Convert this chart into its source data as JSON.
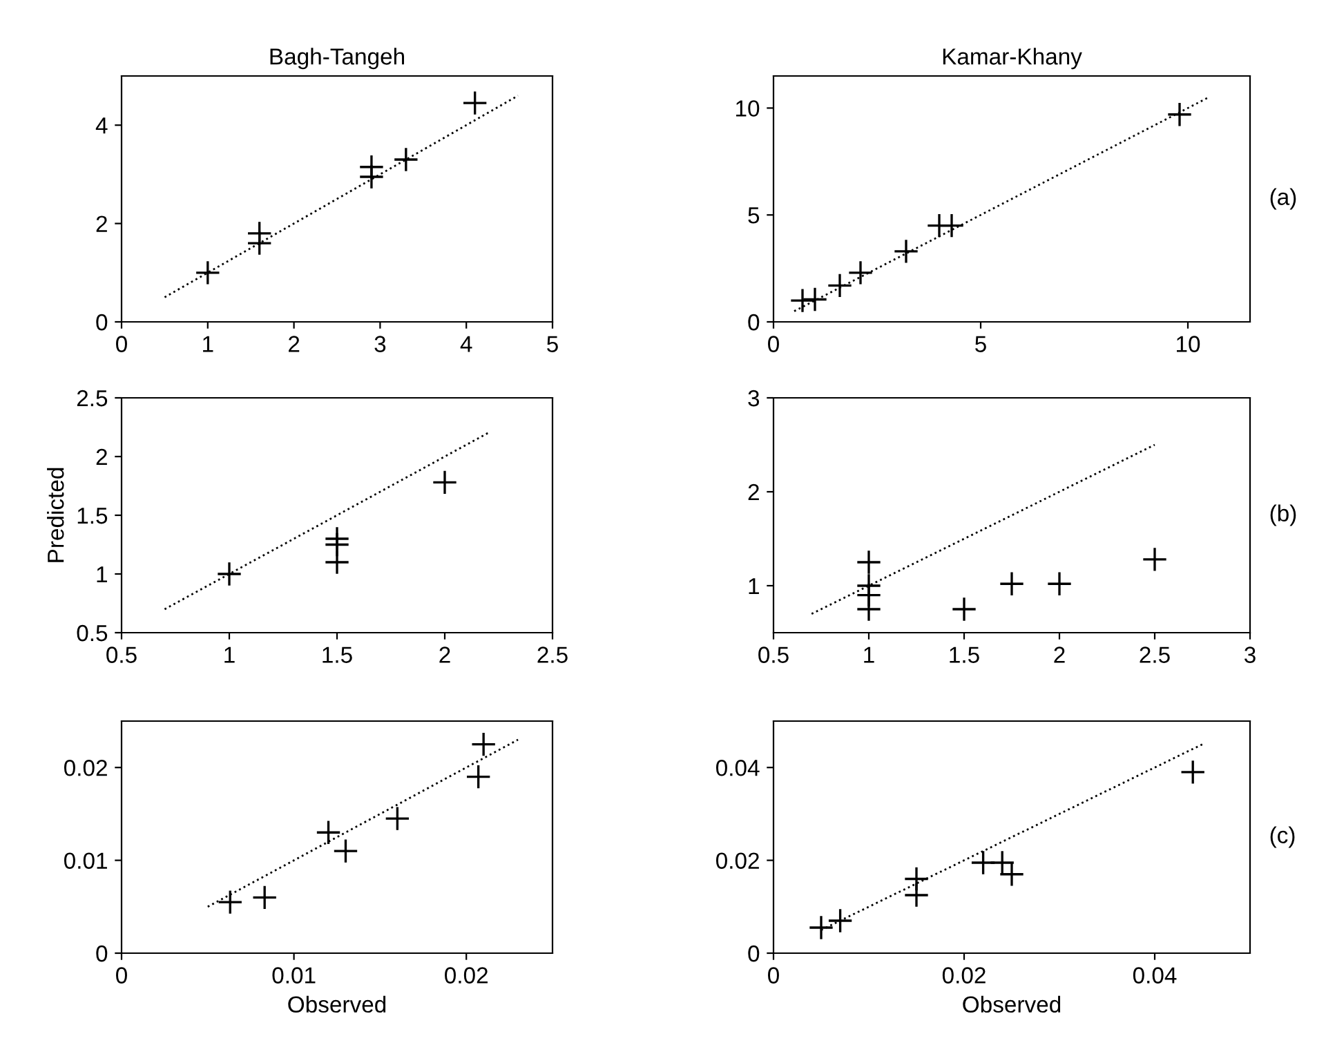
{
  "chart_data": [
    {
      "type": "scatter",
      "title": "Bagh-Tangeh",
      "xlim": [
        0,
        5
      ],
      "ylim": [
        0,
        5
      ],
      "xticks": [
        0,
        1,
        2,
        3,
        4,
        5
      ],
      "yticks": [
        0,
        2,
        4
      ],
      "grid": false,
      "legend": false,
      "marker": "cross",
      "series": [
        {
          "color": "#000000",
          "x": [
            1,
            1.6,
            1.6,
            2.9,
            2.9,
            3.3,
            4.1
          ],
          "values": [
            1,
            1.6,
            1.8,
            2.95,
            3.15,
            3.3,
            4.45
          ]
        },
        {
          "type": "line",
          "color": "#000000",
          "line_style": "dotted",
          "marker": "none",
          "x": [
            0.5,
            4.6
          ],
          "values": [
            0.5,
            4.6
          ]
        }
      ]
    },
    {
      "type": "scatter",
      "title": "Kamar-Khany",
      "annotations": [
        "(a)"
      ],
      "xlim": [
        0,
        11.5
      ],
      "ylim": [
        0,
        11.5
      ],
      "xticks": [
        0,
        5,
        10
      ],
      "yticks": [
        0,
        5,
        10
      ],
      "grid": false,
      "legend": false,
      "marker": "cross",
      "series": [
        {
          "color": "#000000",
          "x": [
            0.7,
            1,
            1.6,
            2.1,
            3.2,
            4,
            4.3,
            9.8
          ],
          "values": [
            1,
            1.05,
            1.7,
            2.3,
            3.3,
            4.5,
            4.5,
            9.7
          ]
        },
        {
          "type": "line",
          "color": "#000000",
          "line_style": "dotted",
          "marker": "none",
          "x": [
            0.5,
            10.5
          ],
          "values": [
            0.5,
            10.5
          ]
        }
      ]
    },
    {
      "type": "scatter",
      "ylabel": "Predicted",
      "xlim": [
        0.5,
        2.5
      ],
      "ylim": [
        0.5,
        2.5
      ],
      "xticks": [
        0.5,
        1,
        1.5,
        2,
        2.5
      ],
      "yticks": [
        0.5,
        1,
        1.5,
        2,
        2.5
      ],
      "grid": false,
      "legend": false,
      "marker": "cross",
      "series": [
        {
          "color": "#000000",
          "x": [
            1,
            1.5,
            1.5,
            1.5,
            2
          ],
          "values": [
            1,
            1.3,
            1.25,
            1.1,
            1.78
          ]
        },
        {
          "type": "line",
          "color": "#000000",
          "line_style": "dotted",
          "marker": "none",
          "x": [
            0.7,
            2.2
          ],
          "values": [
            0.7,
            2.2
          ]
        }
      ]
    },
    {
      "type": "scatter",
      "annotations": [
        "(b)"
      ],
      "xlim": [
        0.5,
        3
      ],
      "ylim": [
        0.5,
        3
      ],
      "xticks": [
        0.5,
        1,
        1.5,
        2,
        2.5,
        3
      ],
      "yticks": [
        1,
        2,
        3
      ],
      "grid": false,
      "legend": false,
      "marker": "cross",
      "series": [
        {
          "color": "#000000",
          "x": [
            1,
            1,
            1,
            1,
            1.5,
            1.75,
            2,
            2.5
          ],
          "values": [
            1.25,
            1,
            0.9,
            0.75,
            0.75,
            1.02,
            1.02,
            1.28
          ]
        },
        {
          "type": "line",
          "color": "#000000",
          "line_style": "dotted",
          "marker": "none",
          "x": [
            0.7,
            2.5
          ],
          "values": [
            0.7,
            2.5
          ]
        }
      ]
    },
    {
      "type": "scatter",
      "xlabel": "Observed",
      "xlim": [
        0,
        0.025
      ],
      "ylim": [
        0,
        0.025
      ],
      "xticks": [
        0,
        0.01,
        0.02
      ],
      "yticks": [
        0,
        0.01,
        0.02
      ],
      "grid": false,
      "legend": false,
      "marker": "cross",
      "series": [
        {
          "color": "#000000",
          "x": [
            0.0063,
            0.0083,
            0.012,
            0.013,
            0.016,
            0.0207,
            0.021
          ],
          "values": [
            0.0055,
            0.006,
            0.013,
            0.011,
            0.0145,
            0.019,
            0.0225
          ]
        },
        {
          "type": "line",
          "color": "#000000",
          "line_style": "dotted",
          "marker": "none",
          "x": [
            0.005,
            0.023
          ],
          "values": [
            0.005,
            0.023
          ]
        }
      ]
    },
    {
      "type": "scatter",
      "xlabel": "Observed",
      "annotations": [
        "(c)"
      ],
      "xlim": [
        0,
        0.05
      ],
      "ylim": [
        0,
        0.05
      ],
      "xticks": [
        0,
        0.02,
        0.04
      ],
      "yticks": [
        0,
        0.02,
        0.04
      ],
      "grid": false,
      "legend": false,
      "marker": "cross",
      "series": [
        {
          "color": "#000000",
          "x": [
            0.005,
            0.007,
            0.015,
            0.015,
            0.022,
            0.024,
            0.025,
            0.044
          ],
          "values": [
            0.0055,
            0.007,
            0.016,
            0.0125,
            0.0195,
            0.0195,
            0.017,
            0.039
          ]
        },
        {
          "type": "line",
          "color": "#000000",
          "line_style": "dotted",
          "marker": "none",
          "x": [
            0.005,
            0.045
          ],
          "values": [
            0.005,
            0.045
          ]
        }
      ]
    }
  ]
}
